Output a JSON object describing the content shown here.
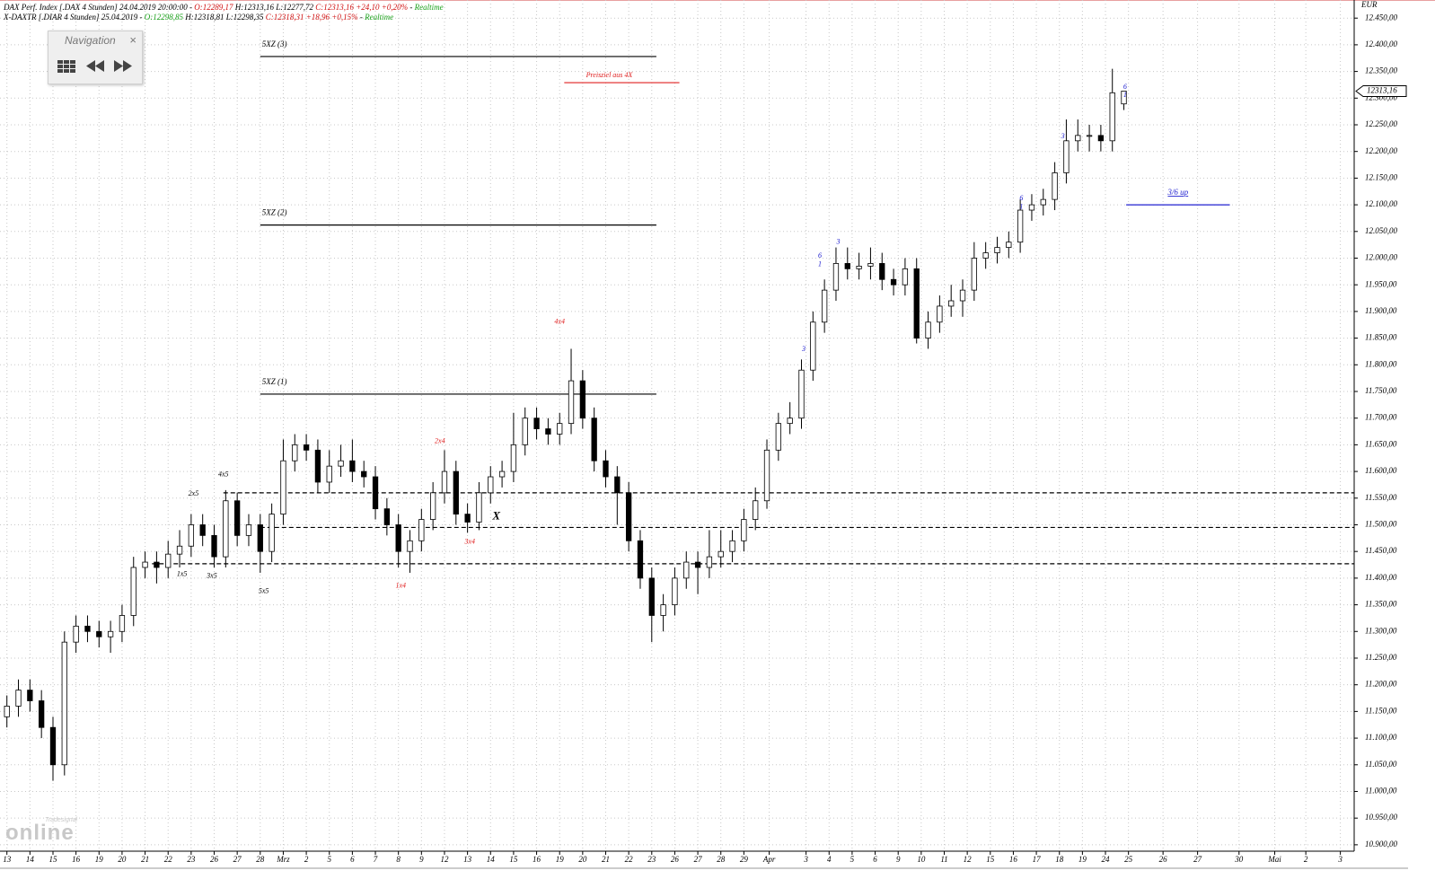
{
  "header": [
    [
      {
        "text": "DAX Perf. Index [.DAX 4 Stunden] 24.04.2019 20:00:00 - ",
        "color": "#000000"
      },
      {
        "text": "O:12289,17",
        "color": "#d01010"
      },
      {
        "text": " H:12313,16 L:12277,72 ",
        "color": "#000000"
      },
      {
        "text": "C:12313,16 +24,10 +0,20%",
        "color": "#d01010"
      },
      {
        "text": " - ",
        "color": "#000000"
      },
      {
        "text": "Realtime",
        "color": "#18a018"
      }
    ],
    [
      {
        "text": "X-DAXTR [.DIAR 4 Stunden] 25.04.2019 - ",
        "color": "#000000"
      },
      {
        "text": "O:12298,85",
        "color": "#18a018"
      },
      {
        "text": " H:12318,81 L:12298,35 ",
        "color": "#000000"
      },
      {
        "text": "C:12318,31 +18,96 +0,15%",
        "color": "#d01010"
      },
      {
        "text": " - ",
        "color": "#000000"
      },
      {
        "text": "Realtime",
        "color": "#18a018"
      }
    ]
  ],
  "navigation": {
    "title": "Navigation",
    "close": "×"
  },
  "logo": {
    "brand": "Tradesignal",
    "name": "online"
  },
  "chart_data": {
    "type": "candlestick",
    "y_unit": "EUR",
    "grid": true,
    "up_color": "#ffffff",
    "down_color": "#000000",
    "xlim": [
      -0.3,
      58.5
    ],
    "ylim": [
      10888,
      12484
    ],
    "x": [
      0,
      0.5,
      1,
      1.5,
      2,
      2.5,
      3,
      3.5,
      4,
      4.5,
      5,
      5.5,
      6,
      6.5,
      7,
      7.5,
      8,
      8.5,
      9,
      9.5,
      10,
      10.5,
      11,
      11.5,
      12,
      12.5,
      13,
      13.5,
      14,
      14.5,
      15,
      15.5,
      16,
      16.5,
      17,
      17.5,
      18,
      18.5,
      19,
      19.5,
      20,
      20.5,
      21,
      21.5,
      22,
      22.5,
      23,
      23.5,
      24,
      24.5,
      25,
      25.5,
      26,
      26.5,
      27,
      27.5,
      28,
      28.5,
      29,
      29.5,
      30,
      30.5,
      31,
      31.5,
      32,
      32.5,
      33,
      33.5,
      34,
      34.5,
      35,
      35.5,
      36,
      36.5,
      37,
      37.5,
      38,
      38.5,
      39,
      39.5,
      40,
      40.5,
      41,
      41.5,
      42,
      42.5,
      43,
      43.5,
      44,
      44.5,
      45,
      45.5,
      46,
      46.5,
      47,
      47.5,
      48,
      48.5
    ],
    "open": [
      11140,
      11160,
      11190,
      11170,
      11120,
      11050,
      11280,
      11310,
      11300,
      11290,
      11300,
      11330,
      11420,
      11430,
      11420,
      11445,
      11460,
      11500,
      11480,
      11440,
      11545,
      11480,
      11500,
      11450,
      11520,
      11620,
      11650,
      11640,
      11580,
      11610,
      11620,
      11600,
      11590,
      11530,
      11500,
      11450,
      11470,
      11510,
      11560,
      11600,
      11520,
      11505,
      11560,
      11590,
      11600,
      11650,
      11700,
      11680,
      11670,
      11690,
      11770,
      11700,
      11620,
      11590,
      11560,
      11470,
      11400,
      11330,
      11350,
      11400,
      11430,
      11420,
      11440,
      11450,
      11470,
      11510,
      11545,
      11640,
      11690,
      11700,
      11790,
      11880,
      11940,
      11990,
      11980,
      11985,
      11990,
      11960,
      11950,
      11980,
      11850,
      11880,
      11910,
      11920,
      11940,
      12000,
      12010,
      12020,
      12030,
      12090,
      12100,
      12110,
      12160,
      12220,
      12230,
      12230,
      12220,
      12289.17
    ],
    "high": [
      11180,
      11210,
      11210,
      11190,
      11140,
      11300,
      11330,
      11330,
      11320,
      11320,
      11350,
      11440,
      11450,
      11450,
      11470,
      11490,
      11520,
      11520,
      11500,
      11565,
      11560,
      11520,
      11520,
      11540,
      11660,
      11670,
      11670,
      11660,
      11640,
      11650,
      11660,
      11620,
      11610,
      11550,
      11520,
      11490,
      11530,
      11580,
      11640,
      11620,
      11540,
      11580,
      11610,
      11620,
      11710,
      11720,
      11720,
      11700,
      11710,
      11830,
      11790,
      11720,
      11640,
      11610,
      11580,
      11490,
      11420,
      11370,
      11420,
      11450,
      11450,
      11490,
      11490,
      11490,
      11530,
      11570,
      11660,
      11710,
      11730,
      11810,
      11900,
      11960,
      12020,
      12020,
      12010,
      12020,
      12010,
      11980,
      12000,
      12000,
      11900,
      11930,
      11950,
      11960,
      12030,
      12030,
      12040,
      12050,
      12110,
      12120,
      12130,
      12180,
      12260,
      12260,
      12250,
      12250,
      12355,
      12313.16
    ],
    "low": [
      11120,
      11140,
      11150,
      11100,
      11020,
      11030,
      11260,
      11280,
      11270,
      11260,
      11280,
      11310,
      11400,
      11390,
      11400,
      11420,
      11440,
      11460,
      11420,
      11420,
      11460,
      11460,
      11410,
      11430,
      11500,
      11600,
      11620,
      11560,
      11560,
      11590,
      11580,
      11570,
      11510,
      11480,
      11420,
      11410,
      11450,
      11490,
      11540,
      11500,
      11485,
      11490,
      11540,
      11570,
      11580,
      11630,
      11660,
      11650,
      11650,
      11670,
      11680,
      11600,
      11570,
      11500,
      11450,
      11380,
      11280,
      11300,
      11330,
      11380,
      11370,
      11400,
      11420,
      11430,
      11450,
      11490,
      11530,
      11620,
      11670,
      11680,
      11770,
      11860,
      11920,
      11960,
      11960,
      11960,
      11940,
      11930,
      11930,
      11840,
      11830,
      11860,
      11890,
      11890,
      11920,
      11980,
      11990,
      12000,
      12010,
      12070,
      12080,
      12090,
      12140,
      12200,
      12200,
      12200,
      12200,
      12277.72
    ],
    "close": [
      11160,
      11190,
      11170,
      11120,
      11050,
      11280,
      11310,
      11300,
      11290,
      11300,
      11330,
      11420,
      11430,
      11420,
      11445,
      11460,
      11500,
      11480,
      11440,
      11545,
      11480,
      11500,
      11450,
      11520,
      11620,
      11650,
      11640,
      11580,
      11610,
      11620,
      11600,
      11590,
      11530,
      11500,
      11450,
      11470,
      11510,
      11560,
      11600,
      11520,
      11505,
      11560,
      11590,
      11600,
      11650,
      11700,
      11680,
      11670,
      11690,
      11770,
      11700,
      11620,
      11590,
      11560,
      11470,
      11400,
      11330,
      11350,
      11400,
      11430,
      11420,
      11440,
      11450,
      11470,
      11510,
      11545,
      11640,
      11690,
      11700,
      11790,
      11880,
      11940,
      11990,
      11980,
      11985,
      11990,
      11960,
      11950,
      11980,
      11850,
      11880,
      11910,
      11920,
      11940,
      12000,
      12010,
      12020,
      12030,
      12090,
      12100,
      12110,
      12160,
      12220,
      12230,
      12230,
      12220,
      12310,
      12313.16
    ],
    "current_price": {
      "value": 12313.16,
      "label": "12313,16"
    },
    "yticks": [
      {
        "value": 10900,
        "label": "10.900,00"
      },
      {
        "value": 10950,
        "label": "10.950,00"
      },
      {
        "value": 11000,
        "label": "11.000,00"
      },
      {
        "value": 11050,
        "label": "11.050,00"
      },
      {
        "value": 11100,
        "label": "11.100,00"
      },
      {
        "value": 11150,
        "label": "11.150,00"
      },
      {
        "value": 11200,
        "label": "11.200,00"
      },
      {
        "value": 11250,
        "label": "11.250,00"
      },
      {
        "value": 11300,
        "label": "11.300,00"
      },
      {
        "value": 11350,
        "label": "11.350,00"
      },
      {
        "value": 11400,
        "label": "11.400,00"
      },
      {
        "value": 11450,
        "label": "11.450,00"
      },
      {
        "value": 11500,
        "label": "11.500,00"
      },
      {
        "value": 11550,
        "label": "11.550,00"
      },
      {
        "value": 11600,
        "label": "11.600,00"
      },
      {
        "value": 11650,
        "label": "11.650,00"
      },
      {
        "value": 11700,
        "label": "11.700,00"
      },
      {
        "value": 11750,
        "label": "11.750,00"
      },
      {
        "value": 11800,
        "label": "11.800,00"
      },
      {
        "value": 11850,
        "label": "11.850,00"
      },
      {
        "value": 11900,
        "label": "11.900,00"
      },
      {
        "value": 11950,
        "label": "11.950,00"
      },
      {
        "value": 12000,
        "label": "12.000,00"
      },
      {
        "value": 12050,
        "label": "12.050,00"
      },
      {
        "value": 12100,
        "label": "12.100,00"
      },
      {
        "value": 12150,
        "label": "12.150,00"
      },
      {
        "value": 12200,
        "label": "12.200,00"
      },
      {
        "value": 12250,
        "label": "12.250,00"
      },
      {
        "value": 12300,
        "label": "12.300,00"
      },
      {
        "value": 12350,
        "label": "12.350,00"
      },
      {
        "value": 12400,
        "label": "12.400,00"
      },
      {
        "value": 12450,
        "label": "12.450,00"
      }
    ],
    "xticks": [
      {
        "value": 0,
        "label": "13"
      },
      {
        "value": 1,
        "label": "14"
      },
      {
        "value": 2,
        "label": "15"
      },
      {
        "value": 3,
        "label": "16"
      },
      {
        "value": 4,
        "label": "19"
      },
      {
        "value": 5,
        "label": "20"
      },
      {
        "value": 6,
        "label": "21"
      },
      {
        "value": 7,
        "label": "22"
      },
      {
        "value": 8,
        "label": "23"
      },
      {
        "value": 9,
        "label": "26"
      },
      {
        "value": 10,
        "label": "27"
      },
      {
        "value": 11,
        "label": "28"
      },
      {
        "value": 12,
        "label": "Mrz"
      },
      {
        "value": 13,
        "label": "2"
      },
      {
        "value": 14,
        "label": "5"
      },
      {
        "value": 15,
        "label": "6"
      },
      {
        "value": 16,
        "label": "7"
      },
      {
        "value": 17,
        "label": "8"
      },
      {
        "value": 18,
        "label": "9"
      },
      {
        "value": 19,
        "label": "12"
      },
      {
        "value": 20,
        "label": "13"
      },
      {
        "value": 21,
        "label": "14"
      },
      {
        "value": 22,
        "label": "15"
      },
      {
        "value": 23,
        "label": "16"
      },
      {
        "value": 24,
        "label": "19"
      },
      {
        "value": 25,
        "label": "20"
      },
      {
        "value": 26,
        "label": "21"
      },
      {
        "value": 27,
        "label": "22"
      },
      {
        "value": 28,
        "label": "23"
      },
      {
        "value": 29,
        "label": "26"
      },
      {
        "value": 30,
        "label": "27"
      },
      {
        "value": 31,
        "label": "28"
      },
      {
        "value": 32,
        "label": "29"
      },
      {
        "value": 33.1,
        "label": "Apr"
      },
      {
        "value": 34.7,
        "label": "3"
      },
      {
        "value": 35.7,
        "label": "4"
      },
      {
        "value": 36.7,
        "label": "5"
      },
      {
        "value": 37.7,
        "label": "6"
      },
      {
        "value": 38.7,
        "label": "9"
      },
      {
        "value": 39.7,
        "label": "10"
      },
      {
        "value": 40.7,
        "label": "11"
      },
      {
        "value": 41.7,
        "label": "12"
      },
      {
        "value": 42.7,
        "label": "15"
      },
      {
        "value": 43.7,
        "label": "16"
      },
      {
        "value": 44.7,
        "label": "17"
      },
      {
        "value": 45.7,
        "label": "18"
      },
      {
        "value": 46.7,
        "label": "19"
      },
      {
        "value": 47.7,
        "label": "24"
      },
      {
        "value": 48.7,
        "label": "25"
      },
      {
        "value": 50.2,
        "label": "26"
      },
      {
        "value": 51.7,
        "label": "27"
      },
      {
        "value": 53.5,
        "label": "30"
      },
      {
        "value": 55.05,
        "label": "Mai"
      },
      {
        "value": 56.4,
        "label": "2"
      },
      {
        "value": 57.9,
        "label": "3"
      }
    ],
    "levels": [
      {
        "label": "5XZ (3)",
        "value": 12378,
        "x": [
          11.0,
          28.2
        ],
        "color": "#000000",
        "style": "solid"
      },
      {
        "label": "5XZ (2)",
        "value": 12062,
        "x": [
          11.0,
          28.2
        ],
        "color": "#000000",
        "style": "solid"
      },
      {
        "label": "5XZ (1)",
        "value": 11745,
        "x": [
          11.0,
          28.2
        ],
        "color": "#000000",
        "style": "solid"
      },
      {
        "label": "Preisziel aus 4X",
        "value": 12329,
        "x": [
          24.2,
          29.2
        ],
        "color": "#e02020",
        "style": "solid"
      },
      {
        "label": "3/6 up",
        "value": 12100,
        "x": [
          48.6,
          53.1
        ],
        "color": "#2020d0",
        "style": "solid"
      },
      {
        "value": 11560,
        "x": [
          9.4,
          58.5
        ],
        "color": "#000000",
        "style": "dashed"
      },
      {
        "value": 11495,
        "x": [
          11.0,
          58.5
        ],
        "color": "#000000",
        "style": "dashed"
      },
      {
        "value": 11427,
        "x": [
          6.3,
          58.5
        ],
        "color": "#000000",
        "style": "dashed"
      }
    ],
    "annotations": [
      {
        "text": "1x5",
        "x": 7.6,
        "y": 11407,
        "color": "#000000"
      },
      {
        "text": "2x5",
        "x": 8.1,
        "y": 11558,
        "color": "#000000"
      },
      {
        "text": "3x5",
        "x": 8.9,
        "y": 11404,
        "color": "#000000"
      },
      {
        "text": "4x5",
        "x": 9.4,
        "y": 11594,
        "color": "#000000"
      },
      {
        "text": "5x5",
        "x": 11.15,
        "y": 11375,
        "color": "#000000"
      },
      {
        "text": "1x4",
        "x": 17.1,
        "y": 11385,
        "color": "#e02020"
      },
      {
        "text": "2x4",
        "x": 18.8,
        "y": 11656,
        "color": "#e02020"
      },
      {
        "text": "3x4",
        "x": 20.1,
        "y": 11468,
        "color": "#e02020"
      },
      {
        "text": "4x4",
        "x": 24.0,
        "y": 11880,
        "color": "#e02020"
      },
      {
        "text": "X",
        "x": 21.25,
        "y": 11515,
        "color": "#000000"
      },
      {
        "text": "3",
        "x": 34.6,
        "y": 11829,
        "color": "#2020d0"
      },
      {
        "text": "6",
        "x": 35.3,
        "y": 12004,
        "color": "#2020d0"
      },
      {
        "text": "1",
        "x": 35.3,
        "y": 11988,
        "color": "#2020d0"
      },
      {
        "text": "3",
        "x": 36.1,
        "y": 12030,
        "color": "#2020d0"
      },
      {
        "text": "6",
        "x": 44.05,
        "y": 12112,
        "color": "#2020d0"
      },
      {
        "text": "1",
        "x": 44.05,
        "y": 12096,
        "color": "#2020d0"
      },
      {
        "text": "3",
        "x": 45.85,
        "y": 12228,
        "color": "#2020d0"
      },
      {
        "text": "6",
        "x": 48.55,
        "y": 12320,
        "color": "#2020d0"
      },
      {
        "text": "1",
        "x": 48.55,
        "y": 12305,
        "color": "#2020d0"
      }
    ]
  }
}
